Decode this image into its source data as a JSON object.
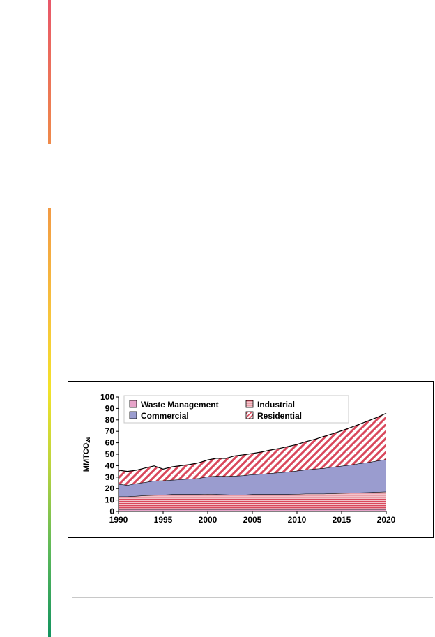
{
  "colors": {
    "accent_top": [
      "#e8576a",
      "#ef8a4a"
    ],
    "accent_bottom": [
      "#f29a44",
      "#f7c43c",
      "#f3e22a",
      "#bcd43e",
      "#5cb85a",
      "#13935f"
    ],
    "residential": "#d9485c",
    "commercial": "#9a9ccf",
    "industrial": "#d9485c",
    "waste": "#e6a3c9"
  },
  "chart_data": {
    "type": "area",
    "stacked": true,
    "title": "",
    "xlabel": "",
    "ylabel": "MMTCO",
    "ylabel_subscript": "2e",
    "xlim": [
      1990,
      2020
    ],
    "ylim": [
      0,
      100
    ],
    "yticks": [
      0,
      10,
      20,
      30,
      40,
      50,
      60,
      70,
      80,
      90,
      100
    ],
    "xticks": [
      1990,
      1995,
      2000,
      2005,
      2010,
      2015,
      2020
    ],
    "grid": false,
    "legend": "top",
    "x": [
      1990,
      1991,
      1992,
      1993,
      1994,
      1995,
      1996,
      1997,
      1998,
      1999,
      2000,
      2001,
      2002,
      2003,
      2004,
      2005,
      2006,
      2007,
      2008,
      2009,
      2010,
      2011,
      2012,
      2013,
      2014,
      2015,
      2016,
      2017,
      2018,
      2019,
      2020
    ],
    "series": [
      {
        "name": "Waste Management",
        "color_key": "waste",
        "pattern": "solid",
        "values": [
          2,
          2,
          2,
          2,
          2,
          2,
          2,
          2,
          2,
          2,
          2,
          2,
          2,
          2,
          2,
          2,
          2,
          2,
          2,
          2,
          2,
          2,
          2,
          2,
          2,
          2,
          2,
          2,
          2,
          2,
          2
        ]
      },
      {
        "name": "Industrial",
        "color_key": "industrial",
        "pattern": "horizontal-lines",
        "values": [
          11,
          11,
          11.5,
          12,
          12.3,
          12.5,
          13,
          13,
          13,
          13,
          13.2,
          13,
          12.8,
          12.5,
          12.5,
          13,
          13,
          13,
          13,
          13,
          13.2,
          13.5,
          13.5,
          13.5,
          13.8,
          14,
          14.2,
          14.5,
          14.7,
          15,
          15.3
        ]
      },
      {
        "name": "Commercial",
        "color_key": "commercial",
        "pattern": "solid",
        "values": [
          11,
          10,
          11,
          11.5,
          12.5,
          12.5,
          12.5,
          13,
          13.5,
          14,
          15.3,
          16,
          16,
          16.5,
          17,
          17.3,
          17.7,
          18.4,
          19,
          19.7,
          20.3,
          21,
          21.7,
          22.3,
          23.1,
          23.8,
          24.5,
          25.4,
          26.2,
          27.3,
          28.2
        ]
      },
      {
        "name": "Residential",
        "color_key": "residential",
        "pattern": "diagonal-hatch",
        "values": [
          12,
          12,
          11.5,
          12.5,
          13,
          10,
          11.5,
          12,
          12.5,
          13.5,
          14.5,
          15.5,
          15.5,
          17.5,
          18,
          18.3,
          19.2,
          20.2,
          21,
          22,
          23,
          24.5,
          25.8,
          27.7,
          29,
          30.7,
          32.6,
          34.3,
          36.3,
          38,
          40.3
        ]
      }
    ]
  }
}
